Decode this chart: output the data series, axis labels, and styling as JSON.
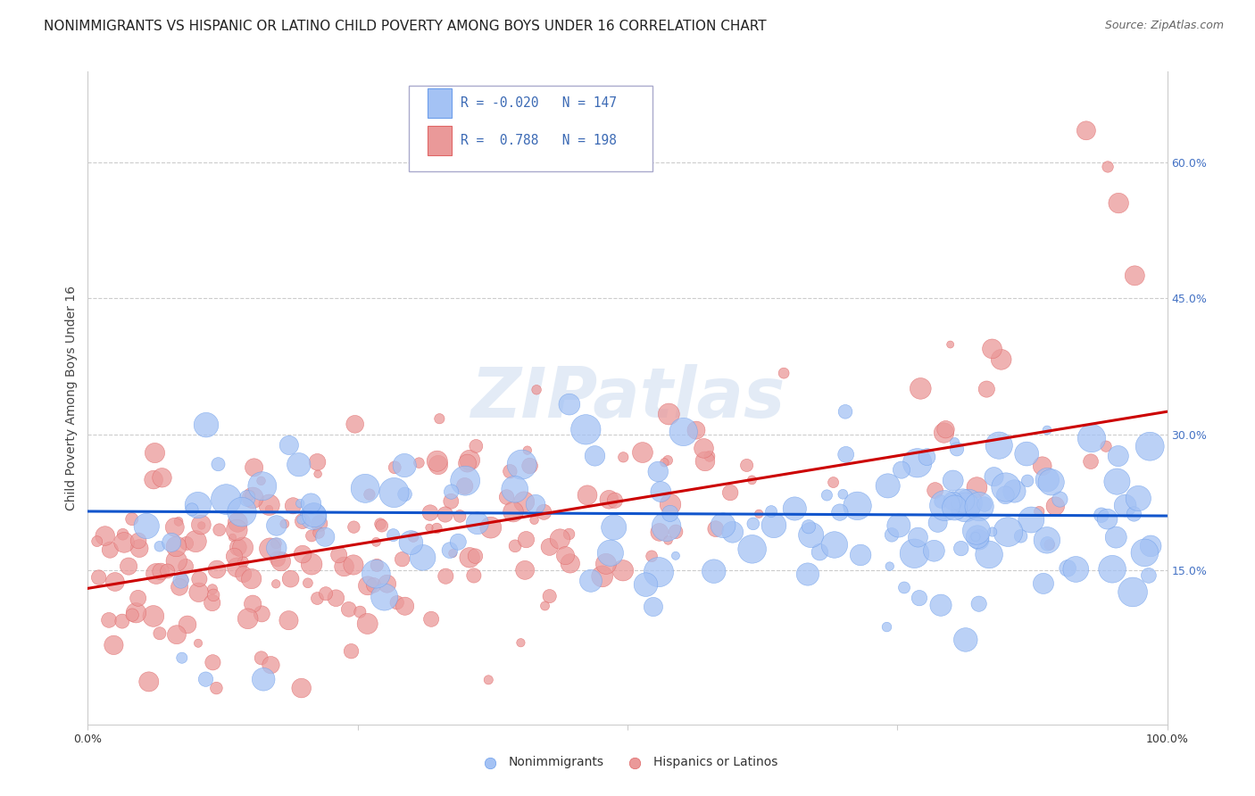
{
  "title": "NONIMMIGRANTS VS HISPANIC OR LATINO CHILD POVERTY AMONG BOYS UNDER 16 CORRELATION CHART",
  "source": "Source: ZipAtlas.com",
  "ylabel": "Child Poverty Among Boys Under 16",
  "xlim": [
    0,
    1
  ],
  "ylim": [
    -0.02,
    0.7
  ],
  "ytick_positions": [
    0.15,
    0.3,
    0.45,
    0.6
  ],
  "ytick_labels": [
    "15.0%",
    "30.0%",
    "45.0%",
    "60.0%"
  ],
  "blue_color": "#a4c2f4",
  "blue_edge": "#6d9eeb",
  "pink_color": "#ea9999",
  "pink_edge": "#e06666",
  "trend_blue": "#1155cc",
  "trend_pink": "#cc0000",
  "blue_R": -0.02,
  "blue_N": 147,
  "pink_R": 0.788,
  "pink_N": 198,
  "blue_trend_start": 0.215,
  "blue_trend_end": 0.21,
  "pink_trend_start": 0.13,
  "pink_trend_end": 0.325,
  "legend_label_blue": "Nonimmigrants",
  "legend_label_pink": "Hispanics or Latinos",
  "watermark": "ZIPatlas",
  "title_fontsize": 11,
  "source_fontsize": 9,
  "axis_label_fontsize": 10,
  "tick_fontsize": 9
}
